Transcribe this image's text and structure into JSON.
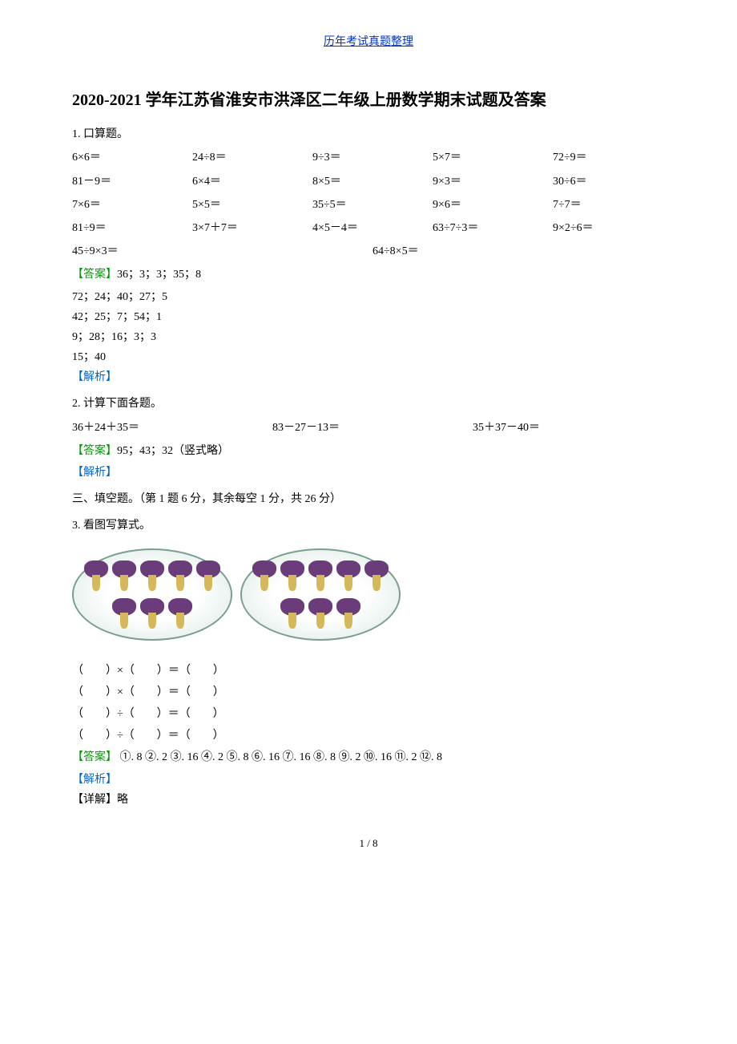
{
  "header": "历年考试真题整理",
  "title": "2020-2021 学年江苏省淮安市洪泽区二年级上册数学期末试题及答案",
  "q1": {
    "label": "1. 口算题。",
    "row1": [
      "6×6＝",
      "24÷8＝",
      "9÷3＝",
      "5×7＝",
      "72÷9＝"
    ],
    "row2": [
      "81－9＝",
      "6×4＝",
      "8×5＝",
      "9×3＝",
      "30÷6＝"
    ],
    "row3": [
      "7×6＝",
      "5×5＝",
      "35÷5＝",
      "9×6＝",
      "7÷7＝"
    ],
    "row4": [
      "81÷9＝",
      "3×7＋7＝",
      "4×5－4＝",
      "63÷7÷3＝",
      "9×2÷6＝"
    ],
    "row5": [
      "45÷9×3＝",
      "64÷8×5＝"
    ],
    "answer_label": "【答案】",
    "answers": [
      "36；3；3；35；8",
      "72；24；40；27；5",
      "42；25；7；54；1",
      "9；28；16；3；3",
      "15；40"
    ],
    "analysis_label": "【解析】"
  },
  "q2": {
    "label": "2. 计算下面各题。",
    "items": [
      "36＋24＋35＝",
      "83－27－13＝",
      "35＋37－40＝"
    ],
    "answer_label": "【答案】",
    "answer": "95；43；32（竖式略）",
    "analysis_label": "【解析】"
  },
  "section3": {
    "heading": "三、填空题。（第 1 题 6 分，其余每空 1 分，共 26 分）"
  },
  "q3": {
    "label": "3. 看图写算式。",
    "mushroom_counts": [
      8,
      8
    ],
    "equations": [
      "（        ）×（        ）＝（        ）",
      "（        ）×（        ）＝（        ）",
      "（        ）÷（        ）＝（        ）",
      "（        ）÷（        ）＝（        ）"
    ],
    "answer_label": "【答案】",
    "answer_items": [
      {
        "n": "①",
        "v": "8"
      },
      {
        "n": "②",
        "v": "2"
      },
      {
        "n": "③",
        "v": "16"
      },
      {
        "n": "④",
        "v": "2"
      },
      {
        "n": "⑤",
        "v": "8"
      },
      {
        "n": "⑥",
        "v": "16"
      },
      {
        "n": "⑦",
        "v": "16"
      },
      {
        "n": "⑧",
        "v": "8"
      },
      {
        "n": "⑨",
        "v": "2"
      },
      {
        "n": "⑩",
        "v": "16"
      },
      {
        "n": "⑪",
        "v": "2"
      },
      {
        "n": "⑫",
        "v": "8"
      }
    ],
    "analysis_label": "【解析】",
    "detail_label": "【详解】",
    "detail_text": "略"
  },
  "footer": "1 / 8",
  "colors": {
    "header_link": "#0033cc",
    "answer_green": "#009900",
    "analysis_blue": "#0066cc",
    "text": "#000000",
    "plate_border": "#7a9e8f",
    "mushroom_cap": "#6a3d7a",
    "mushroom_stem": "#d4b85a"
  }
}
